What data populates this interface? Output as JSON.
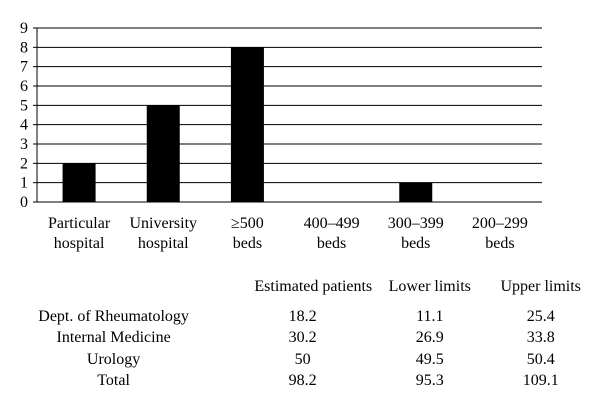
{
  "chart_data": {
    "type": "bar",
    "categories": [
      [
        "Particular",
        "hospital"
      ],
      [
        "University",
        "hospital"
      ],
      [
        "≥500",
        "beds"
      ],
      [
        "400–499",
        "beds"
      ],
      [
        "300–399",
        "beds"
      ],
      [
        "200–299",
        "beds"
      ]
    ],
    "values": [
      2,
      5,
      8,
      0,
      1,
      0
    ],
    "ylim": [
      0,
      9
    ],
    "yticks": [
      "0",
      "1",
      "2",
      "3",
      "4",
      "5",
      "6",
      "7",
      "8",
      "9"
    ],
    "grid": true,
    "bar_color": "#000000",
    "title": "",
    "xlabel": "",
    "ylabel": ""
  },
  "table": {
    "headers": [
      "",
      "Estimated patients",
      "Lower limits",
      "Upper limits"
    ],
    "rows": [
      [
        "Dept. of Rheumatology",
        "18.2",
        "11.1",
        "25.4"
      ],
      [
        "Internal Medicine",
        "30.2",
        "26.9",
        "33.8"
      ],
      [
        "Urology",
        "50",
        "49.5",
        "50.4"
      ],
      [
        "Total",
        "98.2",
        "95.3",
        "109.1"
      ]
    ]
  }
}
